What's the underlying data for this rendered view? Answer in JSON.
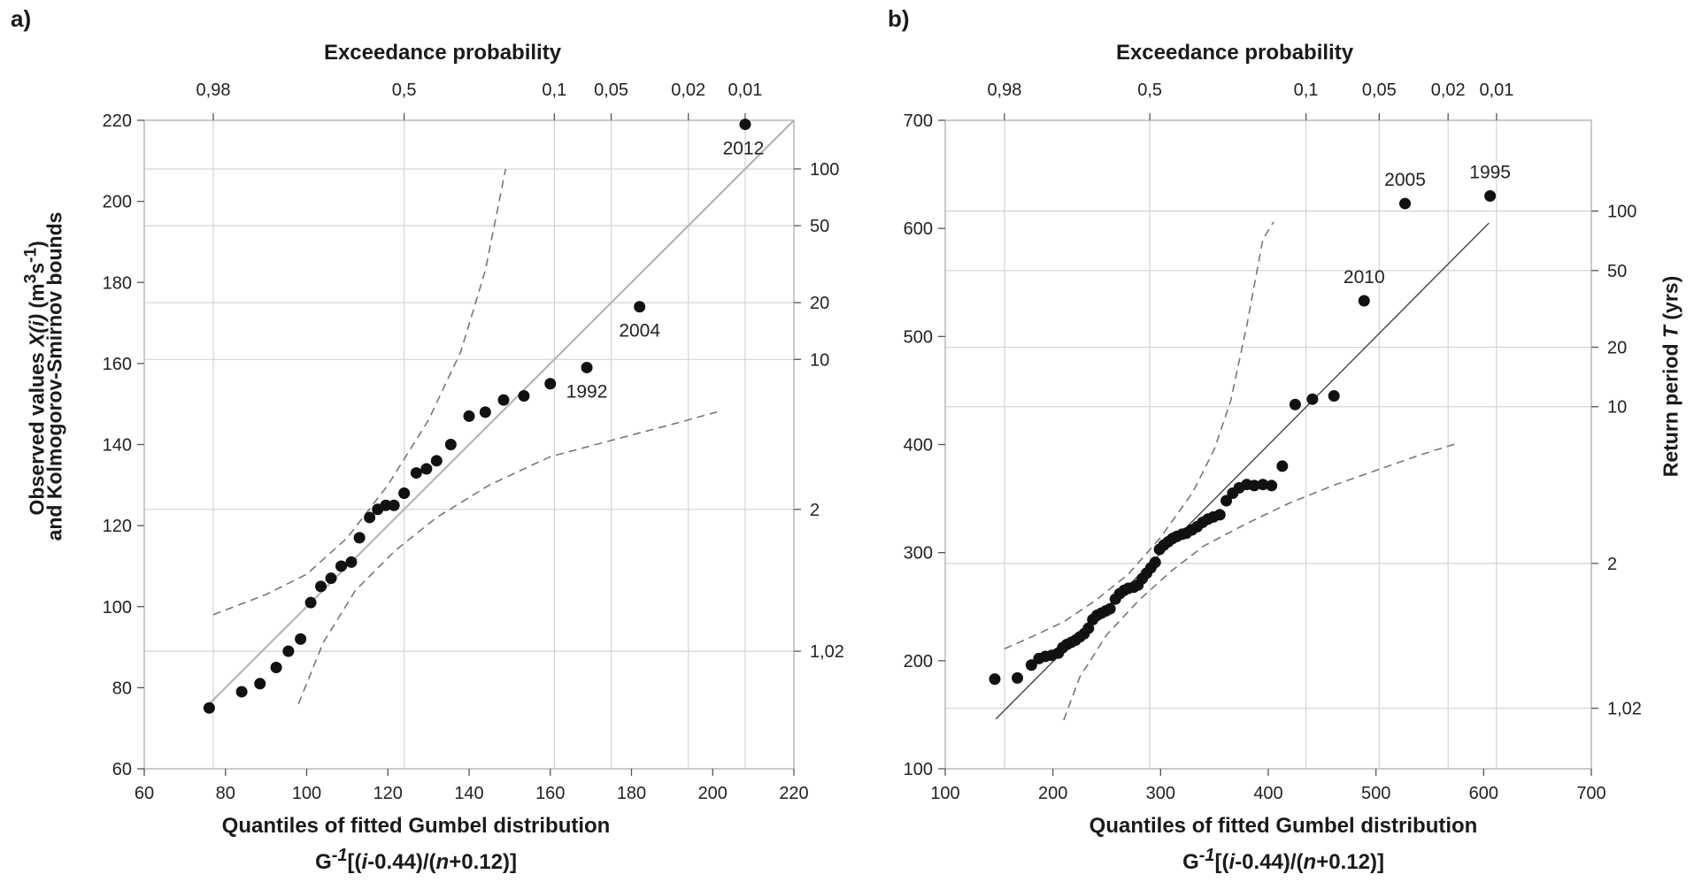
{
  "chart_data": [
    {
      "panel": "a)",
      "type": "scatter",
      "top_axis_title": "Exceedance probability",
      "xlabel": "Quantiles of fitted Gumbel distribution",
      "xlabel_formula": [
        "G",
        "-1",
        "[(",
        "i",
        "-0.44)/(",
        "n",
        "+0.12)]"
      ],
      "ylabel_parts": [
        "Observed values ",
        "X(i)",
        " (m",
        "3",
        "s",
        "-1",
        ")"
      ],
      "ylabel_line2": "and Kolmogorov-Smirnov bounds",
      "xlim": [
        60,
        220
      ],
      "ylim": [
        60,
        220
      ],
      "x_ticks": [
        60,
        80,
        100,
        120,
        140,
        160,
        180,
        200,
        220
      ],
      "y_ticks": [
        60,
        80,
        100,
        120,
        140,
        160,
        180,
        200,
        220
      ],
      "x_tick_labels": [
        "60",
        "80",
        "100",
        "120",
        "140",
        "160",
        "180",
        "200",
        "220"
      ],
      "y_tick_labels": [
        "60",
        "80",
        "100",
        "120",
        "140",
        "160",
        "180",
        "200",
        "220"
      ],
      "prob_ticks": [
        {
          "label": "0,98",
          "x": 77
        },
        {
          "label": "0,5",
          "x": 124
        },
        {
          "label": "0,1",
          "x": 161
        },
        {
          "label": "0,05",
          "x": 175
        },
        {
          "label": "0,02",
          "x": 194
        },
        {
          "label": "0,01",
          "x": 208
        }
      ],
      "return_period_ticks": [
        {
          "label": "100",
          "y": 208
        },
        {
          "label": "50",
          "y": 194
        },
        {
          "label": "20",
          "y": 175
        },
        {
          "label": "10",
          "y": 161
        },
        {
          "label": "2",
          "y": 124
        },
        {
          "label": "1,02",
          "y": 89
        }
      ],
      "points": [
        [
          76,
          75
        ],
        [
          84,
          79
        ],
        [
          88.5,
          81
        ],
        [
          92.5,
          85
        ],
        [
          95.5,
          89
        ],
        [
          98.5,
          92
        ],
        [
          101,
          101
        ],
        [
          103.5,
          105
        ],
        [
          106,
          107
        ],
        [
          108.5,
          110
        ],
        [
          111,
          111
        ],
        [
          113,
          117
        ],
        [
          115.5,
          122
        ],
        [
          117.5,
          124
        ],
        [
          119.5,
          125
        ],
        [
          121.5,
          125
        ],
        [
          124,
          128
        ],
        [
          127,
          133
        ],
        [
          129.5,
          134
        ],
        [
          132,
          136
        ],
        [
          135.5,
          140
        ],
        [
          140,
          147
        ],
        [
          144,
          148
        ],
        [
          148.5,
          151
        ],
        [
          153.5,
          152
        ],
        [
          160,
          155
        ],
        [
          169,
          159
        ],
        [
          182,
          174
        ],
        [
          208,
          219
        ]
      ],
      "fit_line": [
        [
          76,
          76
        ],
        [
          220,
          220
        ]
      ],
      "ks_upper": [
        [
          77,
          98
        ],
        [
          90,
          103
        ],
        [
          100,
          108
        ],
        [
          110,
          117
        ],
        [
          120,
          130
        ],
        [
          130,
          146
        ],
        [
          138,
          163
        ],
        [
          144,
          183
        ],
        [
          149,
          208
        ]
      ],
      "ks_lower": [
        [
          98,
          76
        ],
        [
          104,
          91
        ],
        [
          112,
          104
        ],
        [
          122,
          114
        ],
        [
          132,
          122
        ],
        [
          145,
          130
        ],
        [
          160,
          137
        ],
        [
          175,
          141
        ],
        [
          190,
          145
        ],
        [
          201,
          148
        ]
      ],
      "annotations": [
        {
          "text": "2012",
          "x": 208,
          "y": 219
        },
        {
          "text": "2004",
          "x": 182,
          "y": 174
        },
        {
          "text": "1992",
          "x": 169,
          "y": 159
        }
      ]
    },
    {
      "panel": "b)",
      "type": "scatter",
      "top_axis_title": "Exceedance probability",
      "xlabel": "Quantiles of fitted Gumbel distribution",
      "xlabel_formula": [
        "G",
        "-1",
        "[(",
        "i",
        "-0.44)/(",
        "n",
        "+0.12)]"
      ],
      "right_axis_title_parts": [
        "Return period ",
        "T",
        " (yrs)"
      ],
      "xlim": [
        100,
        700
      ],
      "ylim": [
        100,
        700
      ],
      "x_ticks": [
        100,
        200,
        300,
        400,
        500,
        600,
        700
      ],
      "y_ticks": [
        100,
        200,
        300,
        400,
        500,
        600,
        700
      ],
      "x_tick_labels": [
        "100",
        "200",
        "300",
        "400",
        "500",
        "600",
        "700"
      ],
      "y_tick_labels": [
        "100",
        "200",
        "300",
        "400",
        "500",
        "600",
        "700"
      ],
      "prob_ticks": [
        {
          "label": "0,98",
          "x": 155
        },
        {
          "label": "0,5",
          "x": 290
        },
        {
          "label": "0,1",
          "x": 435
        },
        {
          "label": "0,05",
          "x": 503
        },
        {
          "label": "0,02",
          "x": 567
        },
        {
          "label": "0,01",
          "x": 612
        }
      ],
      "return_period_ticks": [
        {
          "label": "100",
          "y": 616
        },
        {
          "label": "50",
          "y": 561
        },
        {
          "label": "20",
          "y": 490
        },
        {
          "label": "10",
          "y": 435
        },
        {
          "label": "2",
          "y": 290
        },
        {
          "label": "1,02",
          "y": 156
        }
      ],
      "points": [
        [
          146,
          183
        ],
        [
          167,
          184
        ],
        [
          180,
          196
        ],
        [
          187,
          202
        ],
        [
          193,
          204
        ],
        [
          199,
          205
        ],
        [
          205,
          207
        ],
        [
          209,
          212
        ],
        [
          213,
          215
        ],
        [
          217,
          217
        ],
        [
          221,
          219
        ],
        [
          225,
          222
        ],
        [
          229,
          225
        ],
        [
          233,
          230
        ],
        [
          237,
          238
        ],
        [
          241,
          242
        ],
        [
          245,
          244
        ],
        [
          249,
          246
        ],
        [
          253,
          248
        ],
        [
          258,
          257
        ],
        [
          262,
          262
        ],
        [
          266,
          265
        ],
        [
          270,
          267
        ],
        [
          275,
          268
        ],
        [
          279,
          270
        ],
        [
          283,
          276
        ],
        [
          287,
          281
        ],
        [
          291,
          286
        ],
        [
          295,
          291
        ],
        [
          299,
          303
        ],
        [
          303,
          307
        ],
        [
          307,
          310
        ],
        [
          311,
          313
        ],
        [
          315,
          315
        ],
        [
          320,
          317
        ],
        [
          324,
          318
        ],
        [
          329,
          321
        ],
        [
          334,
          324
        ],
        [
          339,
          328
        ],
        [
          344,
          331
        ],
        [
          349,
          333
        ],
        [
          355,
          335
        ],
        [
          361,
          348
        ],
        [
          367,
          355
        ],
        [
          373,
          360
        ],
        [
          380,
          363
        ],
        [
          387,
          362
        ],
        [
          395,
          363
        ],
        [
          403,
          362
        ],
        [
          413,
          380
        ],
        [
          425,
          437
        ],
        [
          441,
          442
        ],
        [
          461,
          445
        ],
        [
          489,
          533
        ],
        [
          527,
          623
        ],
        [
          606,
          630
        ]
      ],
      "fit_line": [
        [
          147,
          146
        ],
        [
          605,
          605
        ]
      ],
      "ks_upper": [
        [
          155,
          211
        ],
        [
          180,
          222
        ],
        [
          210,
          236
        ],
        [
          240,
          256
        ],
        [
          270,
          280
        ],
        [
          300,
          314
        ],
        [
          330,
          356
        ],
        [
          350,
          396
        ],
        [
          365,
          440
        ],
        [
          380,
          510
        ],
        [
          395,
          590
        ],
        [
          405,
          606
        ]
      ],
      "ks_lower": [
        [
          210,
          145
        ],
        [
          225,
          185
        ],
        [
          250,
          224
        ],
        [
          280,
          256
        ],
        [
          310,
          283
        ],
        [
          340,
          306
        ],
        [
          380,
          327
        ],
        [
          420,
          346
        ],
        [
          460,
          362
        ],
        [
          500,
          376
        ],
        [
          540,
          390
        ],
        [
          575,
          401
        ]
      ],
      "annotations": [
        {
          "text": "1995",
          "x": 606,
          "y": 630
        },
        {
          "text": "2005",
          "x": 527,
          "y": 623
        },
        {
          "text": "2010",
          "x": 489,
          "y": 533
        }
      ]
    }
  ]
}
